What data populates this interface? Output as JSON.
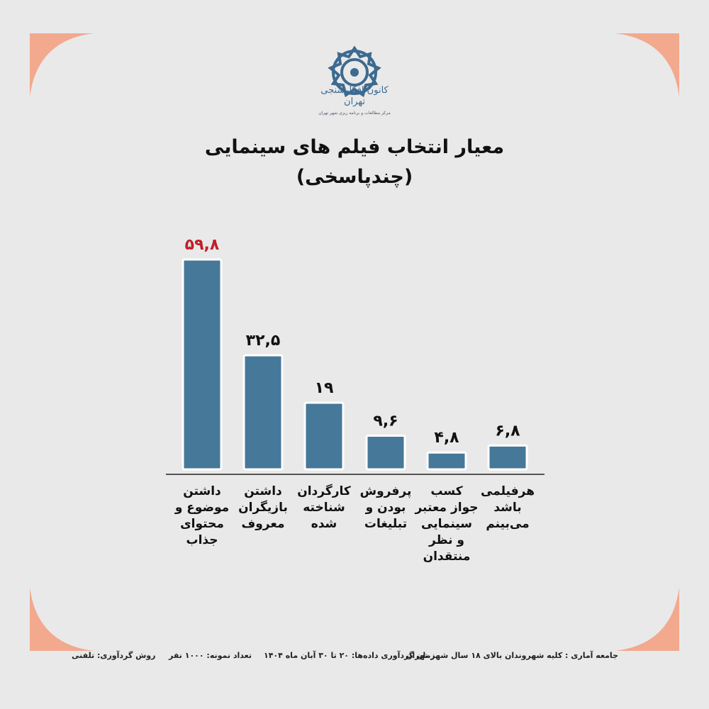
{
  "logo": {
    "name": "tehran-survey-center-logo",
    "text": "کانون افکارسنجی تهران",
    "subtext": "مرکز مطالعات و برنامه ریزی شهر تهران"
  },
  "header": {
    "title": "معیار انتخاب فیلم های سینمایی",
    "subtitle": "(چندپاسخی)"
  },
  "colors": {
    "bar": "#467899",
    "highlight_label": "#c0202a",
    "accent": "#f2a98e",
    "background": "#e9e9ea"
  },
  "chart_data": {
    "type": "bar",
    "title": "معیار انتخاب فیلم های سینمایی",
    "subtitle": "(چندپاسخی)",
    "categories": [
      "داشتن موضوع و محتوای جذاب",
      "داشتن بازیگران معروف",
      "کارگردان شناخته شده",
      "پرفروش بودن و تبلیغات",
      "کسب جواز معتبر سینمایی و نظر منتقدان",
      "هرفیلمی باشد می‌بینم"
    ],
    "category_lines": [
      [
        "داشتن",
        "موضوع و",
        "محتوای",
        "جذاب"
      ],
      [
        "داشتن",
        "بازیگران",
        "معروف"
      ],
      [
        "کارگردان",
        "شناخته",
        "شده"
      ],
      [
        "پرفروش",
        "بودن و",
        "تبلیغات"
      ],
      [
        "کسب",
        "جواز معتبر",
        "سینمایی",
        "و نظر",
        "منتقدان"
      ],
      [
        "هرفیلمی",
        "باشد",
        "می‌بینم"
      ]
    ],
    "values": [
      59.8,
      32.5,
      19,
      9.6,
      4.8,
      6.8
    ],
    "value_labels": [
      "۵۹,۸",
      "۳۲,۵",
      "۱۹",
      "۹,۶",
      "۴,۸",
      "۶,۸"
    ],
    "highlight_index": 0,
    "ylim": [
      0,
      59.8
    ],
    "grid": false,
    "xlabel": "",
    "ylabel": ""
  },
  "footer": {
    "population": "جامعه آماری : کلیه شهروندان بالای ۱۸ سال شهر تهران",
    "period": "زمان گردآوری داده‌ها: ۲۰ تا ۳۰ آبان ماه ۱۴۰۴",
    "sample": "تعداد نمونه: ۱۰۰۰ نفر",
    "method": "روش گردآوری: تلفنی"
  }
}
